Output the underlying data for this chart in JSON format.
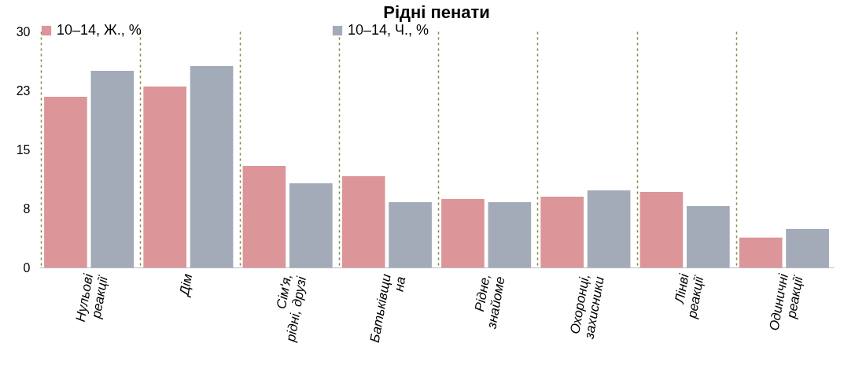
{
  "chart_data": {
    "type": "bar",
    "title": "Рідні пенати",
    "categories": [
      "Нульові\nреакції",
      "Дім",
      "Сім'я,\nрідні, друзі",
      "Батьківщи\nна",
      "Рідне,\nзнайоме",
      "Охоронці,\nзахисники",
      "Лінві\nреакції",
      "Одиничні\nреакції"
    ],
    "series": [
      {
        "name": "10–14, Ж., %",
        "color": "#dc9598",
        "values": [
          21.7,
          23.0,
          12.9,
          11.6,
          8.7,
          9.0,
          9.6,
          3.8
        ]
      },
      {
        "name": "10–14, Ч., %",
        "color": "#a3aab8",
        "values": [
          25.0,
          25.6,
          10.7,
          8.3,
          8.3,
          9.8,
          7.8,
          4.9
        ]
      }
    ],
    "ylim": [
      0,
      30
    ],
    "yticks": [
      0,
      {
        "value": 7.5,
        "label": "8"
      },
      15,
      {
        "value": 22.5,
        "label": "23"
      },
      30
    ],
    "grid": "x",
    "legend": "top"
  }
}
